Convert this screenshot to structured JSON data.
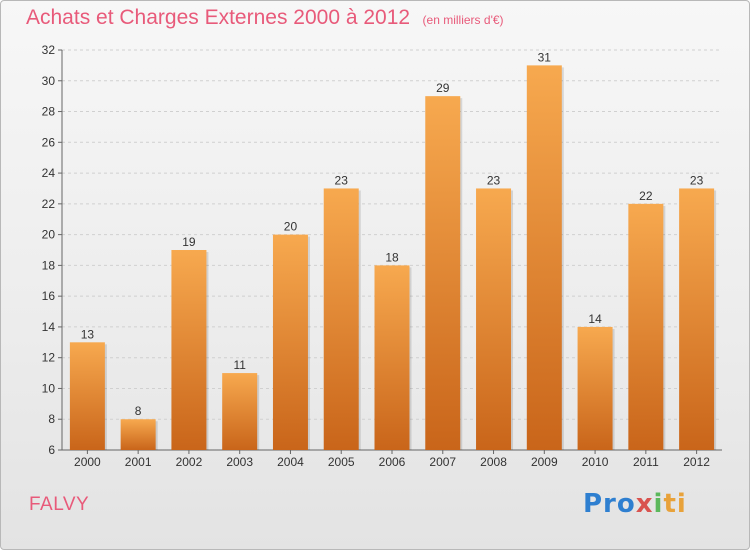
{
  "header": {
    "title": "Achats et Charges Externes 2000 à 2012",
    "subtitle": "(en milliers d'€)"
  },
  "footer": {
    "commune": "FALVY",
    "logo_parts": [
      "Pro",
      "x",
      "i",
      "ti"
    ]
  },
  "colors": {
    "bar_light": "#f7a94f",
    "bar_dark": "#c9651a",
    "grid": "#d0d0d0",
    "title": "#e85a7a"
  },
  "chart_data": {
    "type": "bar",
    "title": "Achats et Charges Externes 2000 à 2012",
    "subtitle": "(en milliers d'€)",
    "categories": [
      "2000",
      "2001",
      "2002",
      "2003",
      "2004",
      "2005",
      "2006",
      "2007",
      "2008",
      "2009",
      "2010",
      "2011",
      "2012"
    ],
    "values": [
      13,
      8,
      19,
      11,
      20,
      23,
      18,
      29,
      23,
      31,
      14,
      22,
      23
    ],
    "ylim": [
      6,
      32
    ],
    "yticks": [
      6,
      8,
      10,
      12,
      14,
      16,
      18,
      20,
      22,
      24,
      26,
      28,
      30,
      32
    ],
    "grid": true,
    "data_labels": true
  }
}
